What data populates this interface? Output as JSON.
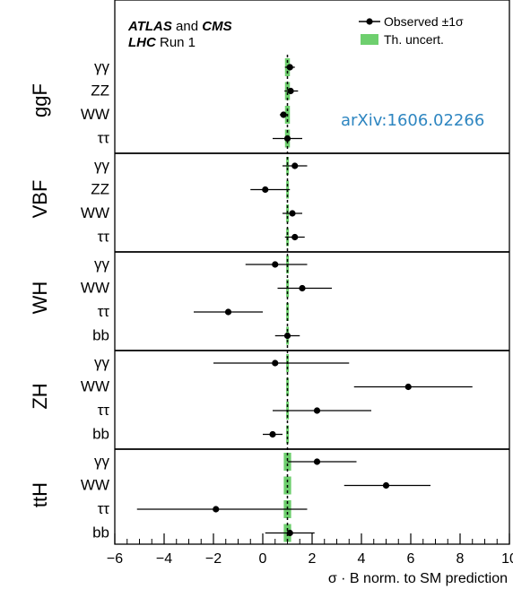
{
  "chart_data": {
    "type": "scatter",
    "title_line1_bold1": "ATLAS",
    "title_line1_mid": " and ",
    "title_line1_bold2": "CMS",
    "title_line2_bold": "LHC",
    "title_line2_rest": " Run 1",
    "legend": {
      "observed": "Observed ±1σ",
      "theory": "Th. uncert.",
      "placement": "top-right"
    },
    "annotation": "arXiv:1606.02266",
    "xlabel": "σ · B norm. to SM prediction",
    "xlim": [
      -6,
      10
    ],
    "xticks": [
      "−6",
      "−4",
      "−2",
      "0",
      "2",
      "4",
      "6",
      "8",
      "10"
    ],
    "reference_line": 1,
    "groups": [
      {
        "name": "ggF",
        "rows": [
          {
            "label": "γγ",
            "value": 1.1,
            "err_lo": 0.2,
            "err_hi": 0.2,
            "th": 0.1
          },
          {
            "label": "ZZ",
            "value": 1.13,
            "err_lo": 0.25,
            "err_hi": 0.3,
            "th": 0.1
          },
          {
            "label": "WW",
            "value": 0.84,
            "err_lo": 0.15,
            "err_hi": 0.15,
            "th": 0.1
          },
          {
            "label": "ττ",
            "value": 1.0,
            "err_lo": 0.6,
            "err_hi": 0.6,
            "th": 0.1
          }
        ]
      },
      {
        "name": "VBF",
        "rows": [
          {
            "label": "γγ",
            "value": 1.3,
            "err_lo": 0.5,
            "err_hi": 0.5,
            "th": 0.05
          },
          {
            "label": "ZZ",
            "value": 0.1,
            "err_lo": 0.6,
            "err_hi": 1.0,
            "th": 0.05
          },
          {
            "label": "WW",
            "value": 1.2,
            "err_lo": 0.4,
            "err_hi": 0.4,
            "th": 0.05
          },
          {
            "label": "ττ",
            "value": 1.3,
            "err_lo": 0.4,
            "err_hi": 0.4,
            "th": 0.05
          }
        ]
      },
      {
        "name": "WH",
        "rows": [
          {
            "label": "γγ",
            "value": 0.5,
            "err_lo": 1.2,
            "err_hi": 1.3,
            "th": 0.05
          },
          {
            "label": "WW",
            "value": 1.6,
            "err_lo": 1.0,
            "err_hi": 1.2,
            "th": 0.05
          },
          {
            "label": "ττ",
            "value": -1.4,
            "err_lo": 1.4,
            "err_hi": 1.4,
            "th": 0.05
          },
          {
            "label": "bb",
            "value": 1.0,
            "err_lo": 0.5,
            "err_hi": 0.5,
            "th": 0.05
          }
        ]
      },
      {
        "name": "ZH",
        "rows": [
          {
            "label": "γγ",
            "value": 0.5,
            "err_lo": 2.5,
            "err_hi": 3.0,
            "th": 0.05
          },
          {
            "label": "WW",
            "value": 5.9,
            "err_lo": 2.2,
            "err_hi": 2.6,
            "th": 0.05
          },
          {
            "label": "ττ",
            "value": 2.2,
            "err_lo": 1.8,
            "err_hi": 2.2,
            "th": 0.05
          },
          {
            "label": "bb",
            "value": 0.4,
            "err_lo": 0.4,
            "err_hi": 0.4,
            "th": 0.05
          }
        ]
      },
      {
        "name": "ttH",
        "rows": [
          {
            "label": "γγ",
            "value": 2.2,
            "err_lo": 1.2,
            "err_hi": 1.6,
            "th": 0.15
          },
          {
            "label": "WW",
            "value": 5.0,
            "err_lo": 1.7,
            "err_hi": 1.8,
            "th": 0.15
          },
          {
            "label": "ττ",
            "value": -1.9,
            "err_lo": 3.2,
            "err_hi": 3.7,
            "th": 0.15
          },
          {
            "label": "bb",
            "value": 1.1,
            "err_lo": 1.0,
            "err_hi": 1.0,
            "th": 0.15
          }
        ]
      }
    ],
    "colors": {
      "theory_band": "#6ecf6e",
      "marker": "#000000",
      "reference": "#000000",
      "annotation": "#2e86c1"
    }
  }
}
